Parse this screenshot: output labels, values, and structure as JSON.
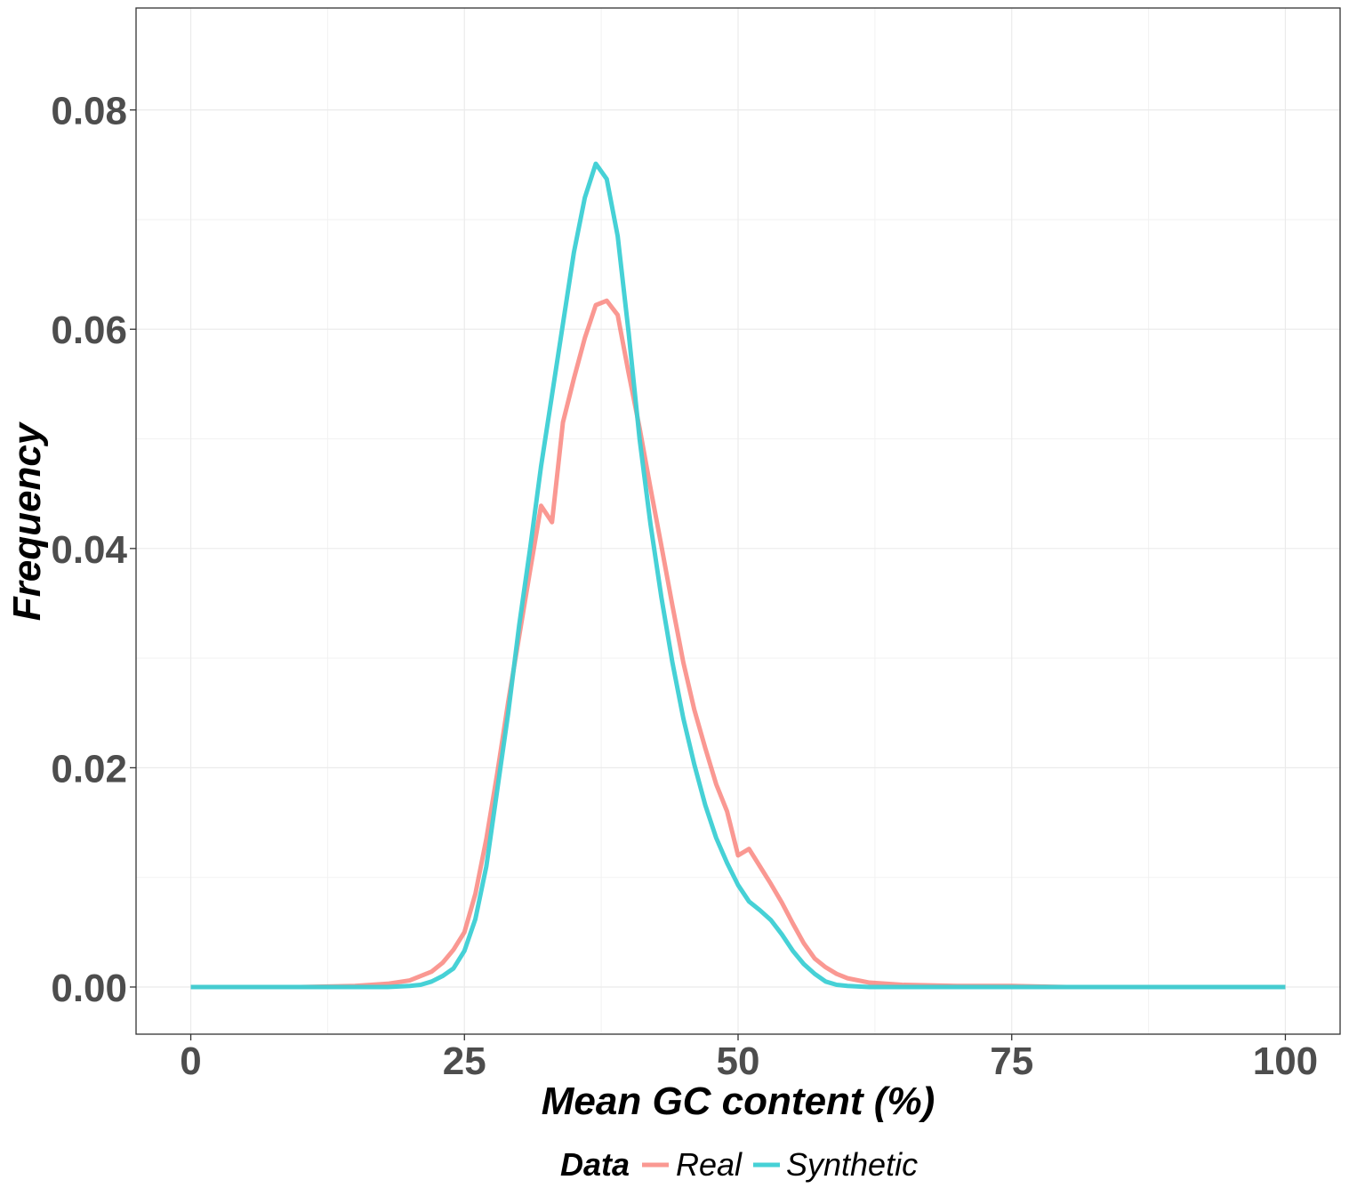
{
  "chart_data": {
    "type": "line",
    "title": "",
    "xlabel": "Mean GC content (%)",
    "ylabel": "Frequency",
    "xlim": [
      -5,
      105
    ],
    "ylim": [
      -0.0043,
      0.0893
    ],
    "x_ticks": [
      0,
      25,
      50,
      75,
      100
    ],
    "x_tick_labels": [
      "0",
      "25",
      "50",
      "75",
      "100"
    ],
    "y_ticks": [
      0,
      0.02,
      0.04,
      0.06,
      0.08
    ],
    "y_tick_labels": [
      "0.00",
      "0.02",
      "0.04",
      "0.06",
      "0.08"
    ],
    "grid": true,
    "legend": {
      "title": "Data",
      "position": "bottom",
      "entries": [
        "Real",
        "Synthetic"
      ]
    },
    "series": [
      {
        "name": "Real",
        "color": "#f8766d",
        "x": [
          0,
          5,
          10,
          15,
          18,
          20,
          22,
          23,
          24,
          25,
          26,
          27,
          28,
          29,
          30,
          31,
          32,
          33,
          34,
          35,
          36,
          37,
          38,
          39,
          40,
          41,
          42,
          43,
          44,
          45,
          46,
          47,
          48,
          49,
          50,
          51,
          52,
          53,
          54,
          55,
          56,
          57,
          58,
          59,
          60,
          62,
          65,
          70,
          75,
          80,
          90,
          100
        ],
        "y": [
          0,
          0,
          0,
          0.0001,
          0.0003,
          0.0006,
          0.0014,
          0.0022,
          0.0034,
          0.005,
          0.0085,
          0.0135,
          0.0195,
          0.026,
          0.032,
          0.038,
          0.0439,
          0.0424,
          0.0515,
          0.0555,
          0.0592,
          0.0622,
          0.0626,
          0.0613,
          0.056,
          0.051,
          0.0455,
          0.0402,
          0.0348,
          0.0296,
          0.0253,
          0.0218,
          0.0185,
          0.016,
          0.012,
          0.0126,
          0.011,
          0.0094,
          0.0077,
          0.0058,
          0.004,
          0.0026,
          0.0018,
          0.0012,
          0.0008,
          0.0004,
          0.0002,
          0.0001,
          0.0001,
          0,
          0,
          0
        ]
      },
      {
        "name": "Synthetic",
        "color": "#3ccfd4",
        "x": [
          0,
          5,
          10,
          15,
          18,
          20,
          21,
          22,
          23,
          24,
          25,
          26,
          27,
          28,
          29,
          30,
          31,
          32,
          33,
          34,
          35,
          36,
          37,
          38,
          39,
          40,
          41,
          42,
          43,
          44,
          45,
          46,
          47,
          48,
          49,
          50,
          51,
          52,
          53,
          54,
          55,
          56,
          57,
          58,
          59,
          60,
          62,
          65,
          70,
          80,
          90,
          100
        ],
        "y": [
          0,
          0,
          0,
          0,
          0,
          0.0001,
          0.0002,
          0.0005,
          0.001,
          0.0017,
          0.0033,
          0.0062,
          0.011,
          0.018,
          0.025,
          0.033,
          0.04,
          0.0475,
          0.054,
          0.0605,
          0.067,
          0.072,
          0.0751,
          0.0737,
          0.0685,
          0.0597,
          0.05,
          0.0422,
          0.0355,
          0.0296,
          0.0245,
          0.0203,
          0.0166,
          0.0136,
          0.0113,
          0.0093,
          0.0078,
          0.007,
          0.0061,
          0.0048,
          0.0033,
          0.0021,
          0.0012,
          0.0005,
          0.0002,
          0.0001,
          0,
          0,
          0,
          0,
          0,
          0
        ]
      }
    ]
  }
}
